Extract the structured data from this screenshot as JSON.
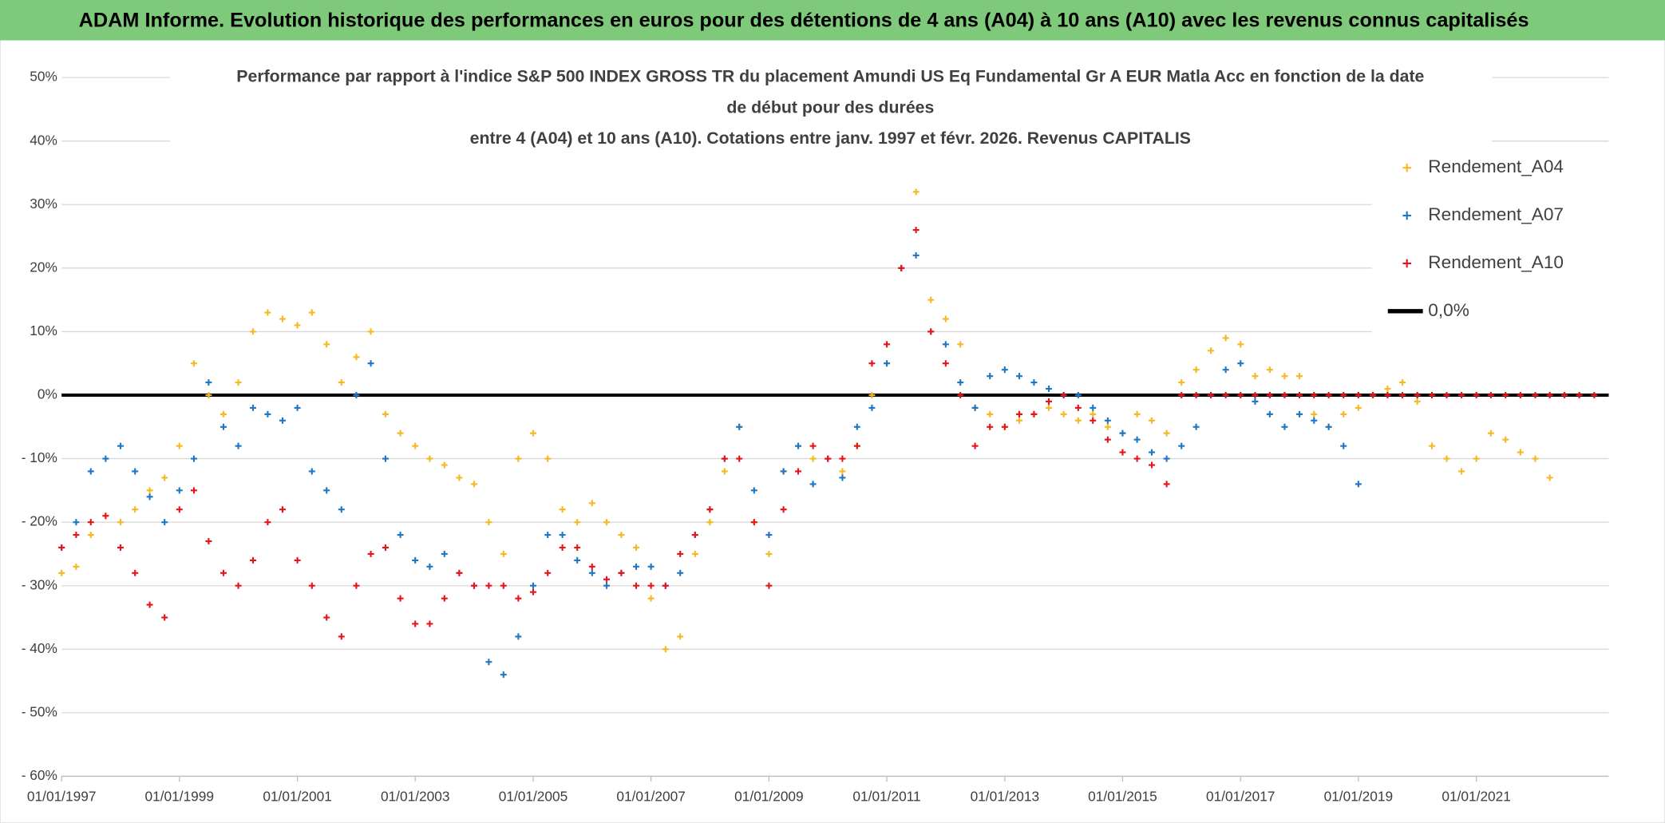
{
  "chart_data": {
    "type": "scatter",
    "title": "ADAM Informe. Evolution historique des performances en euros pour des détentions de 4 ans (A04) à 10 ans (A10) avec les revenus connus capitalisés",
    "subtitle": [
      "Performance par rapport à l'indice S&P 500 INDEX GROSS TR  du placement Amundi US Eq Fundamental Gr A EUR Matla Acc en fonction de la date",
      "de début pour des durées",
      "entre 4 (A04) et 10 ans (A10). Cotations entre janv. 1997 et févr. 2026. Revenus CAPITALIS"
    ],
    "xlim": [
      "1997-01-01",
      "2023-04-01"
    ],
    "xticks": [
      {
        "value": "1997-01-01",
        "label": "01/01/1997"
      },
      {
        "value": "1999-01-01",
        "label": "01/01/1999"
      },
      {
        "value": "2001-01-01",
        "label": "01/01/2001"
      },
      {
        "value": "2003-01-01",
        "label": "01/01/2003"
      },
      {
        "value": "2005-01-01",
        "label": "01/01/2005"
      },
      {
        "value": "2007-01-01",
        "label": "01/01/2007"
      },
      {
        "value": "2009-01-01",
        "label": "01/01/2009"
      },
      {
        "value": "2011-01-01",
        "label": "01/01/2011"
      },
      {
        "value": "2013-01-01",
        "label": "01/01/2013"
      },
      {
        "value": "2015-01-01",
        "label": "01/01/2015"
      },
      {
        "value": "2017-01-01",
        "label": "01/01/2017"
      },
      {
        "value": "2019-01-01",
        "label": "01/01/2019"
      },
      {
        "value": "2021-01-01",
        "label": "01/01/2021"
      }
    ],
    "ylim": [
      -60,
      50
    ],
    "yticks": [
      {
        "value": 50,
        "label": "50%"
      },
      {
        "value": 40,
        "label": "40%"
      },
      {
        "value": 30,
        "label": "30%"
      },
      {
        "value": 20,
        "label": "20%"
      },
      {
        "value": 10,
        "label": "10%"
      },
      {
        "value": 0,
        "label": "0%"
      },
      {
        "value": -10,
        "label": "- 10%"
      },
      {
        "value": -20,
        "label": "- 20%"
      },
      {
        "value": -30,
        "label": "- 30%"
      },
      {
        "value": -40,
        "label": "- 40%"
      },
      {
        "value": -50,
        "label": "- 50%"
      },
      {
        "value": -60,
        "label": "- 60%"
      }
    ],
    "grid": true,
    "legend": "top-right",
    "reference_line": {
      "name": "0,0%",
      "value": 0,
      "color": "#000000"
    },
    "series": [
      {
        "name": "Rendement_A04",
        "color": "#f5b921",
        "x": [
          "1997-01-01",
          "1997-04-01",
          "1997-07-01",
          "1997-10-01",
          "1998-01-01",
          "1998-04-01",
          "1998-07-01",
          "1998-10-01",
          "1999-01-01",
          "1999-04-01",
          "1999-07-01",
          "1999-10-01",
          "2000-01-01",
          "2000-04-01",
          "2000-07-01",
          "2000-10-01",
          "2001-01-01",
          "2001-04-01",
          "2001-07-01",
          "2001-10-01",
          "2002-01-01",
          "2002-04-01",
          "2002-07-01",
          "2002-10-01",
          "2003-01-01",
          "2003-04-01",
          "2003-07-01",
          "2003-10-01",
          "2004-01-01",
          "2004-04-01",
          "2004-07-01",
          "2004-10-01",
          "2005-01-01",
          "2005-04-01",
          "2005-07-01",
          "2005-10-01",
          "2006-01-01",
          "2006-04-01",
          "2006-07-01",
          "2006-10-01",
          "2007-01-01",
          "2007-04-01",
          "2007-07-01",
          "2007-10-01",
          "2008-01-01",
          "2008-04-01",
          "2008-07-01",
          "2008-10-01",
          "2009-01-01",
          "2009-04-01",
          "2009-07-01",
          "2009-10-01",
          "2010-01-01",
          "2010-04-01",
          "2010-07-01",
          "2010-10-01",
          "2011-01-01",
          "2011-04-01",
          "2011-07-01",
          "2011-10-01",
          "2012-01-01",
          "2012-04-01",
          "2012-07-01",
          "2012-10-01",
          "2013-01-01",
          "2013-04-01",
          "2013-07-01",
          "2013-10-01",
          "2014-01-01",
          "2014-04-01",
          "2014-07-01",
          "2014-10-01",
          "2015-01-01",
          "2015-04-01",
          "2015-07-01",
          "2015-10-01",
          "2016-01-01",
          "2016-04-01",
          "2016-07-01",
          "2016-10-01",
          "2017-01-01",
          "2017-04-01",
          "2017-07-01",
          "2017-10-01",
          "2018-01-01",
          "2018-04-01",
          "2018-07-01",
          "2018-10-01",
          "2019-01-01",
          "2019-04-01",
          "2019-07-01",
          "2019-10-01",
          "2020-01-01",
          "2020-04-01",
          "2020-07-01",
          "2020-10-01",
          "2021-01-01",
          "2021-04-01",
          "2021-07-01",
          "2021-10-01",
          "2022-01-01",
          "2022-04-01"
        ],
        "values": [
          -28,
          -27,
          -22,
          -19,
          -20,
          -18,
          -15,
          -13,
          -8,
          5,
          0,
          -3,
          2,
          10,
          13,
          12,
          11,
          13,
          8,
          2,
          6,
          10,
          -3,
          -6,
          -8,
          -10,
          -11,
          -13,
          -14,
          -20,
          -25,
          -10,
          -6,
          -10,
          -18,
          -20,
          -17,
          -20,
          -22,
          -24,
          -32,
          -40,
          -38,
          -25,
          -20,
          -12,
          -5,
          -20,
          -25,
          -12,
          -8,
          -10,
          -10,
          -12,
          -8,
          0,
          5,
          20,
          32,
          15,
          12,
          8,
          -2,
          -3,
          -5,
          -4,
          -3,
          -2,
          -3,
          -4,
          -3,
          -5,
          -6,
          -3,
          -4,
          -6,
          2,
          4,
          7,
          9,
          8,
          3,
          4,
          3,
          3,
          -3,
          -5,
          -3,
          -2,
          0,
          1,
          2,
          -1,
          -8,
          -10,
          -12,
          -10,
          -6,
          -7,
          -9,
          -10,
          -13
        ]
      },
      {
        "name": "Rendement_A07",
        "color": "#1f77c4",
        "x": [
          "1997-01-01",
          "1997-04-01",
          "1997-07-01",
          "1997-10-01",
          "1998-01-01",
          "1998-04-01",
          "1998-07-01",
          "1998-10-01",
          "1999-01-01",
          "1999-04-01",
          "1999-07-01",
          "1999-10-01",
          "2000-01-01",
          "2000-04-01",
          "2000-07-01",
          "2000-10-01",
          "2001-01-01",
          "2001-04-01",
          "2001-07-01",
          "2001-10-01",
          "2002-01-01",
          "2002-04-01",
          "2002-07-01",
          "2002-10-01",
          "2003-01-01",
          "2003-04-01",
          "2003-07-01",
          "2003-10-01",
          "2004-01-01",
          "2004-04-01",
          "2004-07-01",
          "2004-10-01",
          "2005-01-01",
          "2005-04-01",
          "2005-07-01",
          "2005-10-01",
          "2006-01-01",
          "2006-04-01",
          "2006-07-01",
          "2006-10-01",
          "2007-01-01",
          "2007-04-01",
          "2007-07-01",
          "2007-10-01",
          "2008-01-01",
          "2008-04-01",
          "2008-07-01",
          "2008-10-01",
          "2009-01-01",
          "2009-04-01",
          "2009-07-01",
          "2009-10-01",
          "2010-01-01",
          "2010-04-01",
          "2010-07-01",
          "2010-10-01",
          "2011-01-01",
          "2011-04-01",
          "2011-07-01",
          "2011-10-01",
          "2012-01-01",
          "2012-04-01",
          "2012-07-01",
          "2012-10-01",
          "2013-01-01",
          "2013-04-01",
          "2013-07-01",
          "2013-10-01",
          "2014-01-01",
          "2014-04-01",
          "2014-07-01",
          "2014-10-01",
          "2015-01-01",
          "2015-04-01",
          "2015-07-01",
          "2015-10-01",
          "2016-01-01",
          "2016-04-01",
          "2016-07-01",
          "2016-10-01",
          "2017-01-01",
          "2017-04-01",
          "2017-07-01",
          "2017-10-01",
          "2018-01-01",
          "2018-04-01",
          "2018-07-01",
          "2018-10-01",
          "2019-01-01"
        ],
        "values": [
          -24,
          -20,
          -12,
          -10,
          -8,
          -12,
          -16,
          -20,
          -15,
          -10,
          2,
          -5,
          -8,
          -2,
          -3,
          -4,
          -2,
          -12,
          -15,
          -18,
          0,
          5,
          -10,
          -22,
          -26,
          -27,
          -25,
          -28,
          -30,
          -42,
          -44,
          -38,
          -30,
          -22,
          -22,
          -26,
          -28,
          -30,
          -28,
          -27,
          -27,
          -30,
          -28,
          -22,
          -18,
          -10,
          -5,
          -15,
          -22,
          -12,
          -8,
          -14,
          -10,
          -13,
          -5,
          -2,
          5,
          20,
          22,
          10,
          8,
          2,
          -2,
          3,
          4,
          3,
          2,
          1,
          0,
          0,
          -2,
          -4,
          -6,
          -7,
          -9,
          -10,
          -8,
          -5,
          0,
          4,
          5,
          -1,
          -3,
          -5,
          -3,
          -4,
          -5,
          -8,
          -14
        ]
      },
      {
        "name": "Rendement_A10",
        "color": "#e8141c",
        "x": [
          "1997-01-01",
          "1997-04-01",
          "1997-07-01",
          "1997-10-01",
          "1998-01-01",
          "1998-04-01",
          "1998-07-01",
          "1998-10-01",
          "1999-01-01",
          "1999-04-01",
          "1999-07-01",
          "1999-10-01",
          "2000-01-01",
          "2000-04-01",
          "2000-07-01",
          "2000-10-01",
          "2001-01-01",
          "2001-04-01",
          "2001-07-01",
          "2001-10-01",
          "2002-01-01",
          "2002-04-01",
          "2002-07-01",
          "2002-10-01",
          "2003-01-01",
          "2003-04-01",
          "2003-07-01",
          "2003-10-01",
          "2004-01-01",
          "2004-04-01",
          "2004-07-01",
          "2004-10-01",
          "2005-01-01",
          "2005-04-01",
          "2005-07-01",
          "2005-10-01",
          "2006-01-01",
          "2006-04-01",
          "2006-07-01",
          "2006-10-01",
          "2007-01-01",
          "2007-04-01",
          "2007-07-01",
          "2007-10-01",
          "2008-01-01",
          "2008-04-01",
          "2008-07-01",
          "2008-10-01",
          "2009-01-01",
          "2009-04-01",
          "2009-07-01",
          "2009-10-01",
          "2010-01-01",
          "2010-04-01",
          "2010-07-01",
          "2010-10-01",
          "2011-01-01",
          "2011-04-01",
          "2011-07-01",
          "2011-10-01",
          "2012-01-01",
          "2012-04-01",
          "2012-07-01",
          "2012-10-01",
          "2013-01-01",
          "2013-04-01",
          "2013-07-01",
          "2013-10-01",
          "2014-01-01",
          "2014-04-01",
          "2014-07-01",
          "2014-10-01",
          "2015-01-01",
          "2015-04-01",
          "2015-07-01",
          "2015-10-01",
          "2016-01-01",
          "2016-04-01",
          "2016-07-01",
          "2016-10-01",
          "2017-01-01",
          "2017-04-01",
          "2017-07-01",
          "2017-10-01",
          "2018-01-01",
          "2018-04-01",
          "2018-07-01",
          "2018-10-01",
          "2019-01-01",
          "2019-04-01",
          "2019-07-01",
          "2019-10-01",
          "2020-01-01",
          "2020-04-01",
          "2020-07-01",
          "2020-10-01",
          "2021-01-01",
          "2021-04-01",
          "2021-07-01",
          "2021-10-01",
          "2022-01-01",
          "2022-04-01",
          "2022-07-01",
          "2022-10-01",
          "2023-01-01"
        ],
        "values": [
          -24,
          -22,
          -20,
          -19,
          -24,
          -28,
          -33,
          -35,
          -18,
          -15,
          -23,
          -28,
          -30,
          -26,
          -20,
          -18,
          -26,
          -30,
          -35,
          -38,
          -30,
          -25,
          -24,
          -32,
          -36,
          -36,
          -32,
          -28,
          -30,
          -30,
          -30,
          -32,
          -31,
          -28,
          -24,
          -24,
          -27,
          -29,
          -28,
          -30,
          -30,
          -30,
          -25,
          -22,
          -18,
          -10,
          -10,
          -20,
          -30,
          -18,
          -12,
          -8,
          -10,
          -10,
          -8,
          5,
          8,
          20,
          26,
          10,
          5,
          0,
          -8,
          -5,
          -5,
          -3,
          -3,
          -1,
          0,
          -2,
          -4,
          -7,
          -9,
          -10,
          -11,
          -14,
          0,
          0,
          0,
          0,
          0,
          0,
          0,
          0,
          0,
          0,
          0,
          0,
          0,
          0,
          0,
          0,
          0,
          0,
          0,
          0,
          0,
          0,
          0,
          0,
          0,
          0,
          0,
          0,
          0
        ]
      }
    ]
  }
}
